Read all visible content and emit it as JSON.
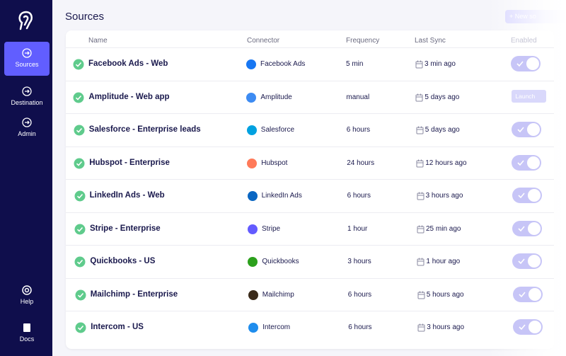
{
  "sidebar": {
    "nav": [
      {
        "label": "Sources"
      },
      {
        "label": "Destination"
      },
      {
        "label": "Admin"
      }
    ],
    "bottom": [
      {
        "label": "Help"
      },
      {
        "label": "Docs"
      }
    ]
  },
  "header": {
    "title": "Sources",
    "button": "+ New so"
  },
  "table": {
    "columns": [
      "Name",
      "Connector",
      "Frequency",
      "Last Sync",
      "Enabled"
    ],
    "rows": [
      {
        "name": "Facebook Ads - Web",
        "connector": "Facebook Ads",
        "frequency": "5 min",
        "last_sync": "3 min ago"
      },
      {
        "name": "Amplitude - Web app",
        "connector": "Amplitude",
        "frequency": "manual",
        "last_sync": "5 days ago",
        "action": "Launch"
      },
      {
        "name": "Salesforce - Enterprise leads",
        "connector": "Salesforce",
        "frequency": "6 hours",
        "last_sync": "5 days ago"
      },
      {
        "name": "Hubspot - Enterprise",
        "connector": "Hubspot",
        "frequency": "24 hours",
        "last_sync": "12 hours ago"
      },
      {
        "name": "LinkedIn Ads - Web",
        "connector": "LinkedIn Ads",
        "frequency": "6 hours",
        "last_sync": "3 hours ago"
      },
      {
        "name": "Stripe - Enterprise",
        "connector": "Stripe",
        "frequency": "1 hour",
        "last_sync": "25 min ago"
      },
      {
        "name": "Quickbooks - US",
        "connector": "Quickbooks",
        "frequency": "3 hours",
        "last_sync": "1 hour ago"
      },
      {
        "name": "Mailchimp - Enterprise",
        "connector": "Mailchimp",
        "frequency": "6 hours",
        "last_sync": "5 hours ago"
      },
      {
        "name": "Intercom - US",
        "connector": "Intercom",
        "frequency": "6 hours",
        "last_sync": "3 hours ago"
      }
    ]
  }
}
